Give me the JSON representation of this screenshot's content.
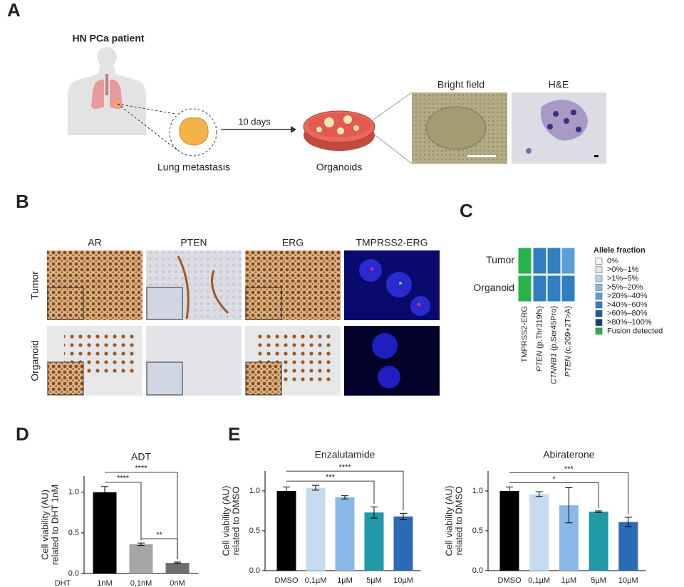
{
  "panel_letters": [
    "A",
    "B",
    "C",
    "D",
    "E"
  ],
  "panel_a": {
    "patient": "HN PCa patient",
    "metastasis": "Lung metastasis",
    "arrow": "10 days",
    "organoids": "Organoids",
    "bright_field": "Bright field",
    "he": "H&E"
  },
  "panel_b": {
    "columns": [
      "AR",
      "PTEN",
      "ERG",
      "TMPRSS2-ERG"
    ],
    "rows": [
      "Tumor",
      "Organoid"
    ]
  },
  "panel_c": {
    "rows": [
      "Tumor",
      "Organoid"
    ],
    "columns": [
      {
        "gene": "TMPRSS2-ERG"
      },
      {
        "gene": "PTEN",
        "variant": "(p.Thr319fs)"
      },
      {
        "gene": "CTNNB1",
        "variant": "(p.Ser45Pro)"
      },
      {
        "gene": "PTEN",
        "variant": "(c.209+2T>A)"
      }
    ],
    "cells": [
      [
        "#27b34a",
        "#2f7fc1",
        "#2f7fc1",
        "#5aa0d6"
      ],
      [
        "#27b34a",
        "#2f7fc1",
        "#2f7fc1",
        "#2f7fc1"
      ]
    ],
    "legend_title": "Allele fraction",
    "legend": [
      {
        "label": "0%",
        "color": "#f2f2f2"
      },
      {
        "label": ">0%–1%",
        "color": "#dde9f5"
      },
      {
        "label": ">1%–5%",
        "color": "#b9d4ec"
      },
      {
        "label": ">5%–20%",
        "color": "#8fbbe0"
      },
      {
        "label": ">20%–40%",
        "color": "#5aa0d6"
      },
      {
        "label": ">40%–60%",
        "color": "#2f7fc1"
      },
      {
        "label": ">60%–80%",
        "color": "#1c5c9e"
      },
      {
        "label": ">80%–100%",
        "color": "#123f73"
      },
      {
        "label": "Fusion detected",
        "color": "#27b34a"
      }
    ]
  },
  "chart_data": [
    {
      "type": "bar",
      "title": "ADT",
      "xlabel": "DHT",
      "categories": [
        "1nM",
        "0,1nM",
        "0nM"
      ],
      "values": [
        1.0,
        0.36,
        0.13
      ],
      "errors": [
        0.07,
        0.015,
        0.01
      ],
      "colors": [
        "#000000",
        "#a6a6a6",
        "#6e6e6e"
      ],
      "ylabel": [
        "Cell viability (AU)",
        "related to DHT 1nM"
      ],
      "ylim": [
        0,
        1.2
      ],
      "yticks": [
        {
          "value": 0,
          "label": "0.0"
        },
        {
          "value": 0.5,
          "label": "0.5"
        },
        {
          "value": 1,
          "label": "1.0"
        }
      ],
      "brackets": [
        {
          "label": "****",
          "from": "1nM",
          "to": "0,1nM"
        },
        {
          "label": "****",
          "from": "1nM",
          "to": "0nM"
        },
        {
          "label": "**",
          "from": "0,1nM",
          "to": "0nM"
        }
      ]
    },
    {
      "type": "bar",
      "title": "Enzalutamide",
      "categories": [
        "DMSO",
        "0,1µM",
        "1µM",
        "5µM",
        "10µM"
      ],
      "values": [
        1.0,
        1.04,
        0.92,
        0.73,
        0.68
      ],
      "errors": [
        0.05,
        0.03,
        0.02,
        0.07,
        0.04
      ],
      "colors": [
        "#000000",
        "#c6dbf0",
        "#8ab8e8",
        "#1f9aa6",
        "#2b6bb5"
      ],
      "ylabel": [
        "Cell viability (AU)",
        "related to DMSO"
      ],
      "ylim": [
        0,
        1.25
      ],
      "yticks": [
        {
          "value": 0,
          "label": "0.0"
        },
        {
          "value": 0.5,
          "label": "0.5"
        },
        {
          "value": 1,
          "label": "1.0"
        }
      ],
      "brackets": [
        {
          "label": "***",
          "from": "DMSO",
          "to": "5µM"
        },
        {
          "label": "****",
          "from": "DMSO",
          "to": "10µM"
        }
      ]
    },
    {
      "type": "bar",
      "title": "Abiraterone",
      "categories": [
        "DMSO",
        "0,1µM",
        "1µM",
        "5µM",
        "10µM"
      ],
      "values": [
        1.0,
        0.96,
        0.82,
        0.74,
        0.61
      ],
      "errors": [
        0.05,
        0.03,
        0.22,
        0.01,
        0.06
      ],
      "colors": [
        "#000000",
        "#c6dbf0",
        "#8ab8e8",
        "#1f9aa6",
        "#2b6bb5"
      ],
      "ylabel": [
        "Cell viability (AU)",
        "related to DMSO"
      ],
      "ylim": [
        0,
        1.25
      ],
      "yticks": [
        {
          "value": 0,
          "label": "0.0"
        },
        {
          "value": 0.5,
          "label": "0.5"
        },
        {
          "value": 1,
          "label": "1.0"
        }
      ],
      "brackets": [
        {
          "label": "*",
          "from": "DMSO",
          "to": "5µM"
        },
        {
          "label": "***",
          "from": "DMSO",
          "to": "10µM"
        }
      ]
    }
  ]
}
